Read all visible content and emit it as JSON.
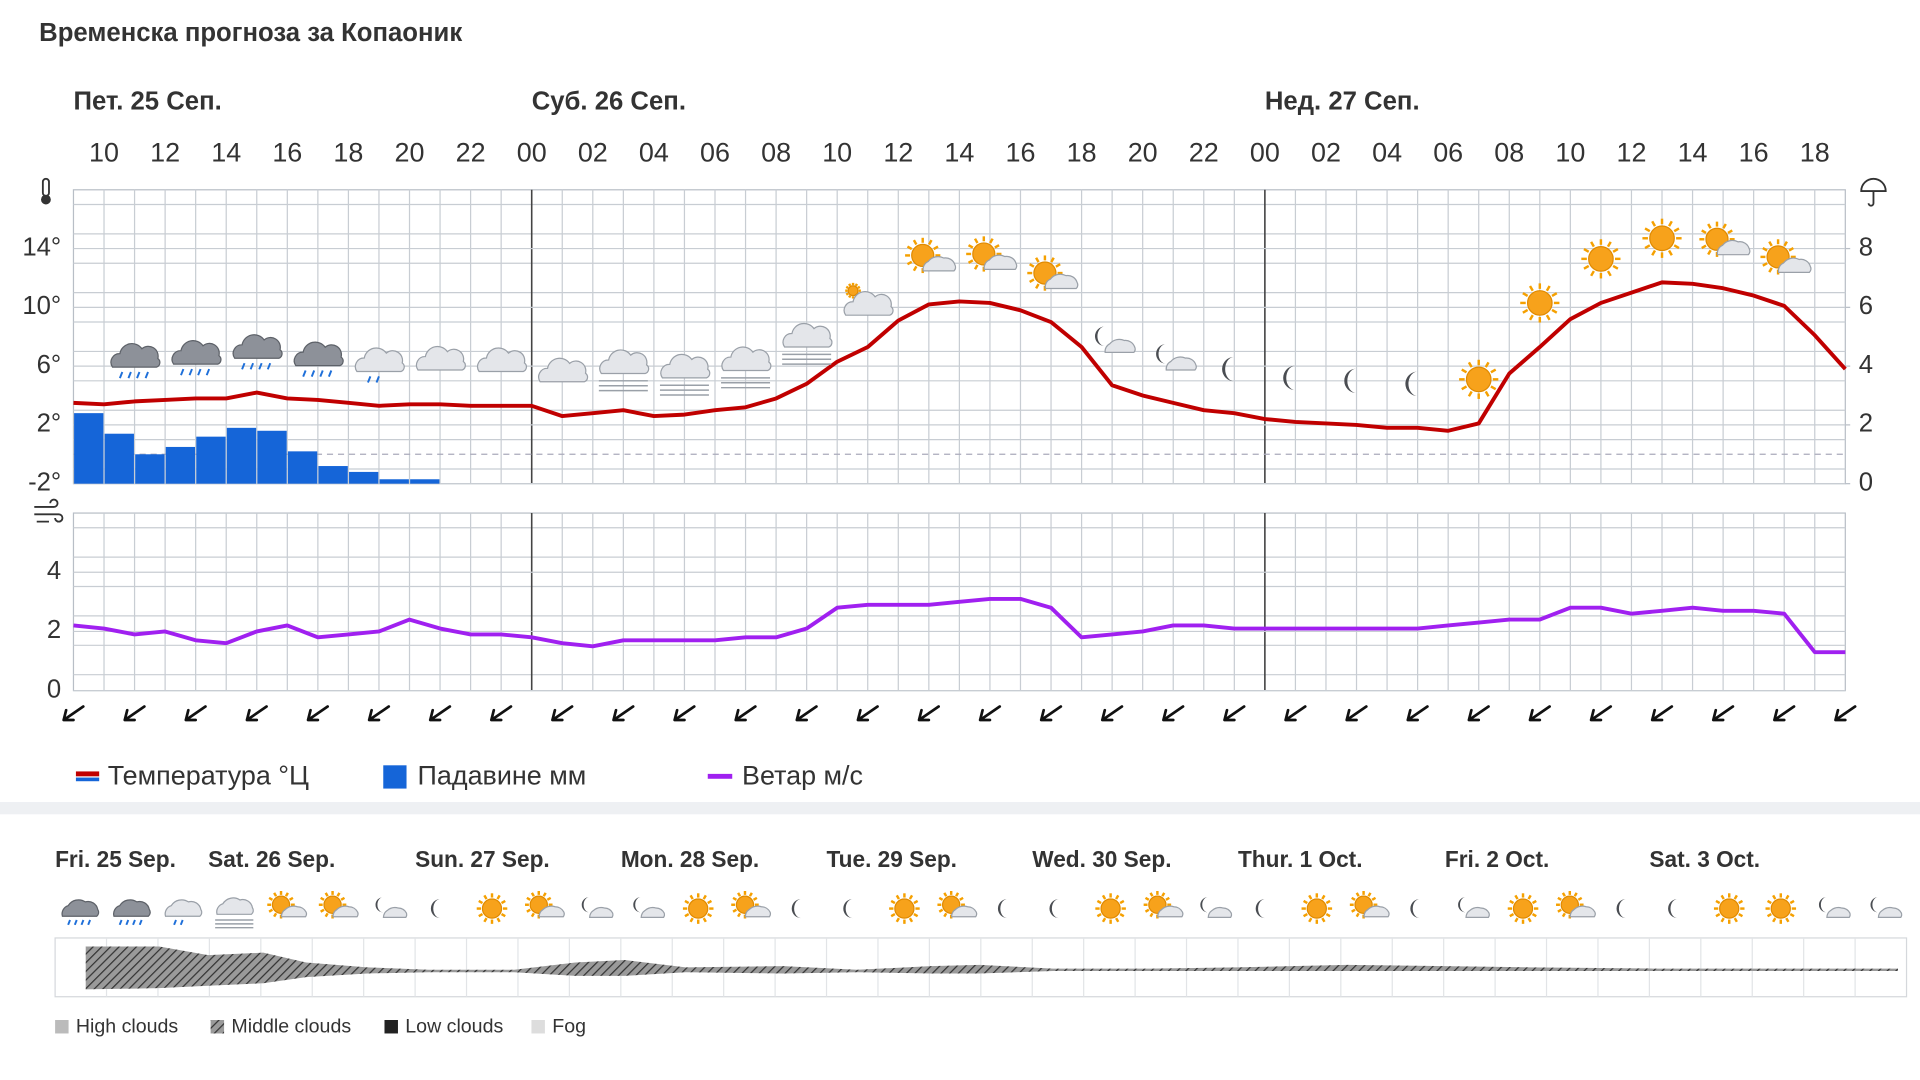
{
  "chart_data": [
    {
      "type": "line",
      "title": "Временска прогноза за Копаоник",
      "day_labels": [
        "Пет. 25 Сеп.",
        "Суб. 26 Сеп.",
        "Нед. 27 Сеп."
      ],
      "categories": [
        null,
        "10",
        null,
        "12",
        null,
        "14",
        null,
        "16",
        null,
        "18",
        null,
        "20",
        null,
        "22",
        null,
        "00",
        null,
        "02",
        null,
        "04",
        null,
        "06",
        null,
        "08",
        null,
        "10",
        null,
        "12",
        null,
        "14",
        null,
        "16",
        null,
        "18",
        null,
        "20",
        null,
        "22",
        null,
        "00",
        null,
        "02",
        null,
        "04",
        null,
        "06",
        null,
        "08",
        null,
        "10",
        null,
        "12",
        null,
        "14",
        null,
        "16",
        null,
        "18",
        null
      ],
      "series": [
        {
          "name": "Температура °Ц",
          "color": "#c00000",
          "values": [
            3.5,
            3.4,
            3.6,
            3.7,
            3.8,
            3.8,
            4.2,
            3.8,
            3.7,
            3.5,
            3.3,
            3.4,
            3.4,
            3.3,
            3.3,
            3.3,
            2.6,
            2.8,
            3.0,
            2.6,
            2.7,
            3.0,
            3.2,
            3.8,
            4.8,
            6.3,
            7.3,
            9.1,
            10.2,
            10.4,
            10.3,
            9.8,
            9.0,
            7.3,
            4.7,
            4.0,
            3.5,
            3.0,
            2.8,
            2.4,
            2.2,
            2.1,
            2.0,
            1.8,
            1.8,
            1.6,
            2.1,
            5.5,
            7.3,
            9.2,
            10.3,
            11.0,
            11.7,
            11.6,
            11.3,
            10.8,
            10.1,
            8.1,
            5.8
          ]
        },
        {
          "name": "Падавине мм",
          "color": "#1565d8",
          "type": "bar",
          "axis": "y2",
          "values": [
            2.4,
            1.7,
            1.0,
            1.25,
            1.6,
            1.9,
            1.8,
            1.1,
            0.6,
            0.4,
            0.15,
            0.15,
            null,
            null,
            null,
            null,
            null,
            null,
            null,
            null,
            null,
            null,
            null,
            null,
            null,
            null,
            null,
            null,
            null,
            null,
            null,
            null,
            null,
            null,
            null,
            null,
            null,
            null,
            null,
            null,
            null,
            null,
            null,
            null,
            null,
            null,
            null,
            null,
            null,
            null,
            null,
            null,
            null,
            null,
            null,
            null,
            null,
            null,
            null
          ]
        }
      ],
      "ylim": [
        -2,
        18
      ],
      "yticks": [
        {
          "value": -2,
          "label": "-2°"
        },
        {
          "value": 2,
          "label": "2°"
        },
        {
          "value": 6,
          "label": "6°"
        },
        {
          "value": 10,
          "label": "10°"
        },
        {
          "value": 14,
          "label": "14°"
        }
      ],
      "y2lim": [
        0,
        10
      ],
      "y2ticks": [
        0,
        2,
        4,
        6,
        8
      ],
      "grid": true
    },
    {
      "type": "line",
      "series": [
        {
          "name": "Ветар м/с",
          "color": "#a020f0",
          "values": [
            2.2,
            2.1,
            1.9,
            2.0,
            1.7,
            1.6,
            2.0,
            2.2,
            1.8,
            1.9,
            2.0,
            2.4,
            2.1,
            1.9,
            1.9,
            1.8,
            1.6,
            1.5,
            1.7,
            1.7,
            1.7,
            1.7,
            1.8,
            1.8,
            2.1,
            2.8,
            2.9,
            2.9,
            2.9,
            3.0,
            3.1,
            3.1,
            2.8,
            1.8,
            1.9,
            2.0,
            2.2,
            2.2,
            2.1,
            2.1,
            2.1,
            2.1,
            2.1,
            2.1,
            2.1,
            2.2,
            2.3,
            2.4,
            2.4,
            2.8,
            2.8,
            2.6,
            2.7,
            2.8,
            2.7,
            2.7,
            2.6,
            1.3,
            1.3
          ]
        }
      ],
      "ylim": [
        0,
        6
      ],
      "yticks": [
        0,
        2,
        4
      ],
      "grid": true
    }
  ],
  "meteogram": {
    "days": [
      "Fri. 25 Sep.",
      "Sat. 26 Sep.",
      "Sun. 27 Sep.",
      "Mon. 28 Sep.",
      "Tue. 29 Sep.",
      "Wed. 30 Sep.",
      "Thur. 1 Oct.",
      "Fri. 2 Oct.",
      "Sat. 3 Oct."
    ],
    "legend": [
      "High clouds",
      "Middle clouds",
      "Low clouds",
      "Fog"
    ]
  }
}
